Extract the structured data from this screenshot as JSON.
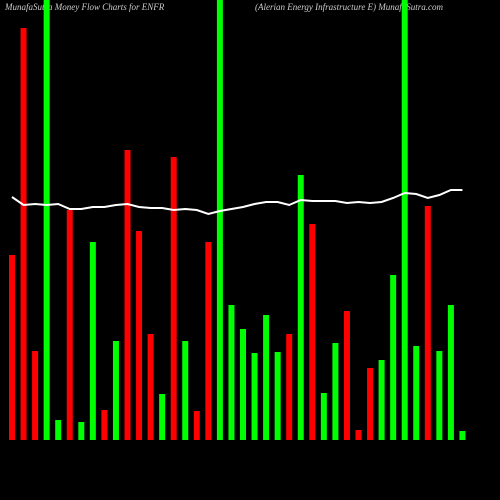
{
  "chart_data": {
    "type": "bar",
    "title": "MunafaSutra  Money Flow  Charts for ENFR",
    "subtitle": "(Alerian  Energy  Infrastructure    E) MunafaSutra.com",
    "categories": [
      null,
      null,
      null,
      null,
      null,
      null,
      null,
      null,
      null,
      null,
      null,
      null,
      null,
      null,
      null,
      null,
      null,
      null,
      null,
      null,
      null,
      null,
      null,
      null,
      null,
      null,
      null,
      null,
      null,
      null,
      null,
      null,
      null,
      null,
      null,
      null,
      null,
      null,
      null,
      null
    ],
    "values": [
      185,
      412,
      89,
      440,
      20,
      230,
      18,
      198,
      30,
      99,
      290,
      209,
      106,
      46,
      283,
      99,
      29,
      198,
      440,
      135,
      111,
      87,
      125,
      88,
      106,
      265,
      216,
      47,
      97,
      129,
      10,
      72,
      80,
      165,
      440,
      94,
      234,
      89,
      135,
      9
    ],
    "colors": [
      "#ff0000",
      "#ff0000",
      "#ff0000",
      "#00ff00",
      "#00ff00",
      "#ff0000",
      "#00ff00",
      "#00ff00",
      "#ff0000",
      "#00ff00",
      "#ff0000",
      "#ff0000",
      "#ff0000",
      "#00ff00",
      "#ff0000",
      "#00ff00",
      "#ff0000",
      "#ff0000",
      "#00ff00",
      "#00ff00",
      "#00ff00",
      "#00ff00",
      "#00ff00",
      "#00ff00",
      "#ff0000",
      "#00ff00",
      "#ff0000",
      "#00ff00",
      "#00ff00",
      "#ff0000",
      "#ff0000",
      "#ff0000",
      "#00ff00",
      "#00ff00",
      "#00ff00",
      "#00ff00",
      "#ff0000",
      "#00ff00",
      "#00ff00",
      "#00ff00"
    ],
    "line_values": [
      243,
      235,
      236,
      235,
      236,
      231,
      231,
      233,
      233,
      235,
      236,
      233,
      232,
      232,
      230,
      231,
      230,
      226,
      229,
      231,
      233,
      236,
      238,
      238,
      235,
      240,
      239,
      239,
      239,
      237,
      238,
      237,
      238,
      242,
      247,
      246,
      242,
      245,
      250,
      250
    ],
    "line_color": "#ffffff",
    "ylim": [
      0,
      440
    ]
  }
}
